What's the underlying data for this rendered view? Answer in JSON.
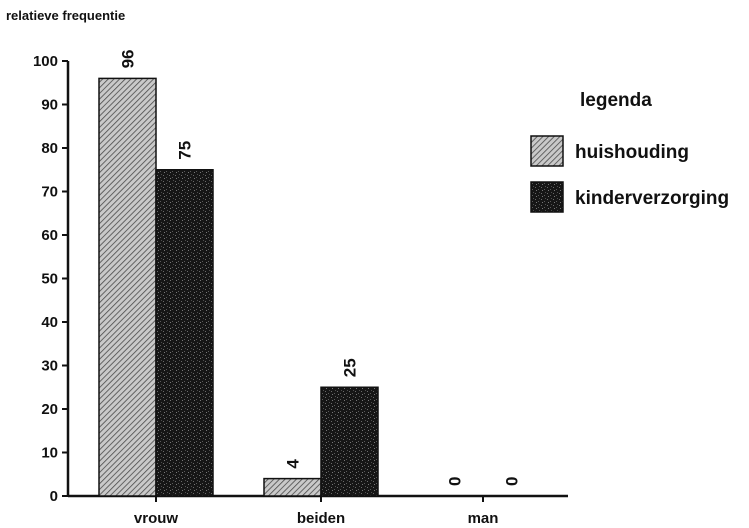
{
  "chart_data": {
    "type": "bar",
    "title": "",
    "ylabel": "relatieve frequentie",
    "xlabel": "",
    "ylim": [
      0,
      100
    ],
    "yticks": [
      0,
      10,
      20,
      30,
      40,
      50,
      60,
      70,
      80,
      90,
      100
    ],
    "categories": [
      "vrouw",
      "beiden",
      "man"
    ],
    "series": [
      {
        "name": "huishouding",
        "values": [
          96,
          4,
          0
        ],
        "color": "#9a9a9a",
        "pattern": "diagonal-hatch"
      },
      {
        "name": "kinderverzorging",
        "values": [
          75,
          25,
          0
        ],
        "color": "#2a2a2a",
        "pattern": "dark-speckle"
      }
    ],
    "data_labels": true,
    "grid": false,
    "legend": {
      "title": "legenda",
      "position": "right"
    }
  }
}
